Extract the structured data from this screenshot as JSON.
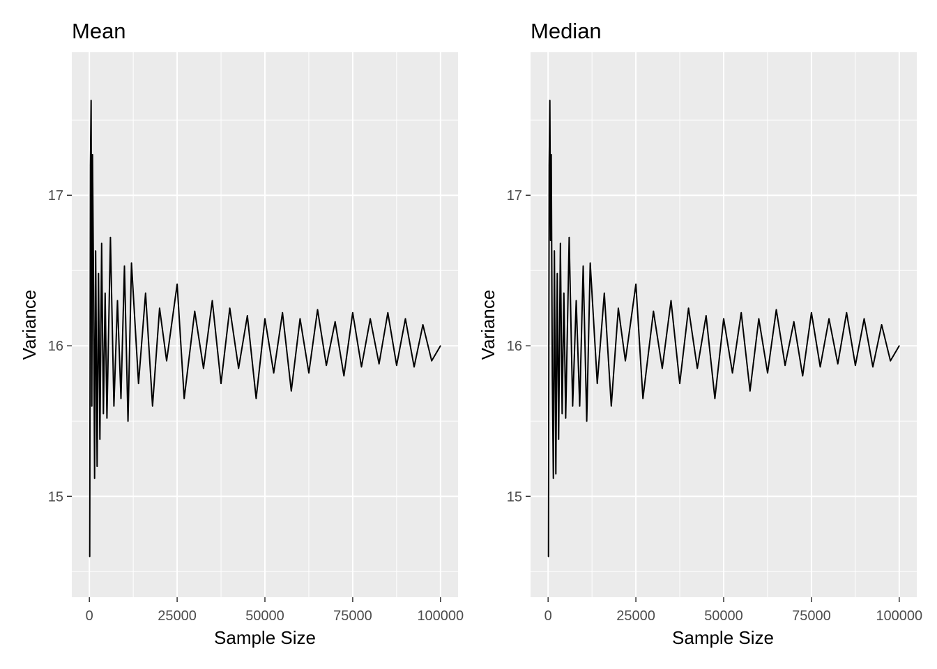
{
  "chart_data": [
    {
      "type": "line",
      "title": "Mean",
      "xlabel": "Sample Size",
      "ylabel": "Variance",
      "xlim": [
        -5000,
        105000
      ],
      "ylim": [
        14.33,
        17.95
      ],
      "x_ticks": [
        0,
        25000,
        50000,
        75000,
        100000
      ],
      "x_tick_labels": [
        "0",
        "25000",
        "50000",
        "75000",
        "100000"
      ],
      "y_ticks": [
        15,
        16,
        17
      ],
      "y_tick_labels": [
        "15",
        "16",
        "17"
      ],
      "grid": true,
      "legend": "none",
      "series_color": "#000000",
      "series": [
        {
          "x": [
            100,
            300,
            500,
            700,
            900,
            1200,
            1500,
            1800,
            2200,
            2600,
            3000,
            3500,
            4000,
            4500,
            5000,
            6000,
            7000,
            8000,
            9000,
            10000,
            11000,
            12000,
            14000,
            16000,
            18000,
            20000,
            22000,
            25000,
            27000,
            30000,
            32500,
            35000,
            37500,
            40000,
            42500,
            45000,
            47500,
            50000,
            52500,
            55000,
            57500,
            60000,
            62500,
            65000,
            67500,
            70000,
            72500,
            75000,
            77500,
            80000,
            82500,
            85000,
            87500,
            90000,
            92500,
            95000,
            97500,
            100000
          ],
          "values": [
            14.6,
            17.2,
            17.63,
            15.6,
            17.27,
            16.4,
            15.12,
            16.63,
            15.2,
            16.48,
            15.38,
            16.68,
            15.55,
            16.35,
            15.52,
            16.72,
            15.6,
            16.3,
            15.65,
            16.53,
            15.5,
            16.55,
            15.75,
            16.35,
            15.6,
            16.25,
            15.9,
            16.41,
            15.65,
            16.23,
            15.85,
            16.3,
            15.75,
            16.25,
            15.85,
            16.2,
            15.65,
            16.18,
            15.82,
            16.22,
            15.7,
            16.18,
            15.82,
            16.24,
            15.87,
            16.16,
            15.8,
            16.22,
            15.86,
            16.18,
            15.88,
            16.22,
            15.87,
            16.18,
            15.86,
            16.14,
            15.9,
            16.0
          ]
        }
      ]
    },
    {
      "type": "line",
      "title": "Median",
      "xlabel": "Sample Size",
      "ylabel": "Variance",
      "xlim": [
        -5000,
        105000
      ],
      "ylim": [
        14.33,
        17.95
      ],
      "x_ticks": [
        0,
        25000,
        50000,
        75000,
        100000
      ],
      "x_tick_labels": [
        "0",
        "25000",
        "50000",
        "75000",
        "100000"
      ],
      "y_ticks": [
        15,
        16,
        17
      ],
      "y_tick_labels": [
        "15",
        "16",
        "17"
      ],
      "grid": true,
      "legend": "none",
      "series_color": "#000000",
      "series": [
        {
          "x": [
            100,
            300,
            500,
            700,
            900,
            1200,
            1500,
            1800,
            2200,
            2600,
            3000,
            3500,
            4000,
            4500,
            5000,
            6000,
            7000,
            8000,
            9000,
            10000,
            11000,
            12000,
            14000,
            16000,
            18000,
            20000,
            22000,
            25000,
            27000,
            30000,
            32500,
            35000,
            37500,
            40000,
            42500,
            45000,
            47500,
            50000,
            52500,
            55000,
            57500,
            60000,
            62500,
            65000,
            67500,
            70000,
            72500,
            75000,
            77500,
            80000,
            82500,
            85000,
            87500,
            90000,
            92500,
            95000,
            97500,
            100000
          ],
          "values": [
            14.6,
            17.2,
            17.63,
            16.7,
            17.27,
            15.8,
            15.12,
            16.63,
            15.15,
            16.48,
            15.38,
            16.68,
            15.55,
            16.35,
            15.52,
            16.72,
            15.6,
            16.3,
            15.6,
            16.53,
            15.5,
            16.55,
            15.75,
            16.35,
            15.6,
            16.25,
            15.9,
            16.41,
            15.65,
            16.23,
            15.85,
            16.3,
            15.75,
            16.25,
            15.85,
            16.2,
            15.65,
            16.18,
            15.82,
            16.22,
            15.7,
            16.18,
            15.82,
            16.24,
            15.87,
            16.16,
            15.8,
            16.22,
            15.86,
            16.18,
            15.88,
            16.22,
            15.87,
            16.18,
            15.86,
            16.14,
            15.9,
            16.0
          ]
        }
      ]
    }
  ]
}
